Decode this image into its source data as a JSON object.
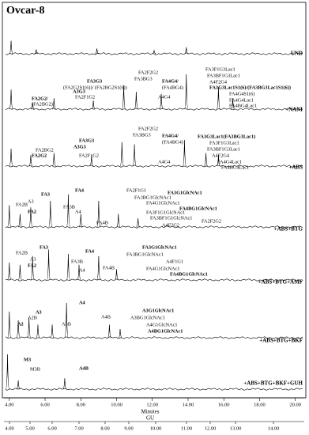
{
  "chart_data": {
    "type": "line",
    "title": "Ovcar-8",
    "xlabel": "Minutes",
    "x2label": "GU",
    "xlim": [
      3.7,
      20.5
    ],
    "xticks": [
      {
        "value": 4,
        "label": "4.00"
      },
      {
        "value": 6,
        "label": "6.00"
      },
      {
        "value": 8,
        "label": "8.00"
      },
      {
        "value": 10,
        "label": "10.00"
      },
      {
        "value": 12,
        "label": "12.00"
      },
      {
        "value": 14,
        "label": "14.00"
      },
      {
        "value": 16,
        "label": "16.00"
      },
      {
        "value": 18,
        "label": "18.00"
      },
      {
        "value": 20,
        "label": "20.00"
      }
    ],
    "x2ticks": [
      {
        "value": 4,
        "label": "4.00"
      },
      {
        "value": 5,
        "label": "5.00"
      },
      {
        "value": 6,
        "label": "6.00"
      },
      {
        "value": 7,
        "label": "7.00"
      },
      {
        "value": 8,
        "label": "8.00"
      },
      {
        "value": 9,
        "label": "9.00"
      },
      {
        "value": 10,
        "label": "10.00"
      },
      {
        "value": 11,
        "label": "11.00"
      },
      {
        "value": 12,
        "label": "12.00"
      },
      {
        "value": 13,
        "label": "13.00"
      },
      {
        "value": 14,
        "label": "14.00"
      }
    ],
    "color": "#000000",
    "panels": [
      {
        "label": "UND",
        "peaks": {
          "x": [
            4.1,
            5.5,
            8.9,
            12.1,
            13.9
          ],
          "values": [
            30,
            10,
            12,
            8,
            15
          ]
        },
        "annotations": []
      },
      {
        "label": "+NANI",
        "peaks": {
          "x": [
            4.1,
            5.3,
            6.5,
            8.7,
            10.4,
            11.1,
            12.5,
            13.9,
            15.7,
            16.5
          ],
          "values": [
            45,
            15,
            25,
            20,
            55,
            40,
            35,
            80,
            50,
            25
          ]
        },
        "annotations": [
          "FA2F2G2",
          "FA3BG3",
          "FA3G3",
          "(FA2G2S1(6))/ (FA2BG2S1(6))",
          "A3G3",
          "FA2G2/",
          "(FA2BG2)",
          "FA2F1G2",
          "FA4G4/",
          "(FA4BG4)",
          "A4G4",
          "FA3F1G3Lac1",
          "FA3BF1G3Lac1",
          "A4F2G4",
          "FA3G3Lac1S1(6)/(FA3BG3Lac1S1(6))",
          "FA4G4S1(6)",
          "FA4G4Lac1",
          "FA4BG4Lac1"
        ]
      },
      {
        "label": "+ABS",
        "peaks": {
          "x": [
            4.1,
            5.2,
            6.5,
            8.6,
            10.3,
            11.0,
            13.8,
            15.0,
            15.7
          ],
          "values": [
            40,
            25,
            30,
            25,
            55,
            50,
            60,
            30,
            25
          ]
        },
        "annotations": [
          "FA2F2G2",
          "FA3BG3",
          "FA3G3",
          "FA4G4/",
          "(FA4BG4)",
          "A3G3",
          "FA2BG2",
          "FA2G2",
          "FA2F1G2",
          "A4G4",
          "FA3G3Lac1(FA3BG3Lac1)",
          "FA3F1G3Lac1",
          "FA3BF1G3Lac1",
          "A4F2G4",
          "FA4G4Lac1",
          "FA4BG4Lac1"
        ]
      },
      {
        "label": "+ABS+BTG",
        "peaks": {
          "x": [
            4.0,
            4.6,
            5.2,
            6.3,
            7.3,
            8.0,
            9.0,
            10.1,
            11.2
          ],
          "values": [
            50,
            30,
            45,
            60,
            75,
            30,
            60,
            30,
            20
          ]
        },
        "annotations": [
          "FA4",
          "FA3",
          "FA2B",
          "A3",
          "FA2",
          "A4",
          "FA3B",
          "FA2F1G1",
          "FA3G1GlcNAc1",
          "FA3BG1GlcNAc1",
          "FA4G1GlcNAc1",
          "FA4BG1GlcNAc1",
          "FA4B",
          "FA3F1G1GlcNAc1",
          "FA3BF1G1GlcNAc1",
          "FA2F2G2",
          "A4F2G2"
        ]
      },
      {
        "label": "+ABS+BTG+AMF",
        "peaks": {
          "x": [
            4.0,
            4.6,
            5.3,
            6.2,
            7.3,
            7.9,
            9.0,
            10.0
          ],
          "values": [
            40,
            35,
            55,
            70,
            60,
            35,
            55,
            25
          ]
        },
        "annotations": [
          "FA3",
          "FA4",
          "FA2B",
          "A3",
          "FA2",
          "FA3B",
          "A4",
          "FA3G1GlcNAc1",
          "FA3BG1GlcNAc1",
          "A4F1G1",
          "FA4B",
          "FA4G1GlcNAc1",
          "FA4BG1GlcNAc1"
        ]
      },
      {
        "label": "+ABS+BTG+BKF",
        "peaks": {
          "x": [
            4.0,
            4.5,
            5.1,
            5.6,
            6.4,
            7.2,
            9.6,
            10.2
          ],
          "values": [
            60,
            40,
            45,
            30,
            30,
            80,
            30,
            20
          ]
        },
        "annotations": [
          "A4",
          "A3",
          "A2B",
          "A3B",
          "A4B",
          "A2",
          "A3G1GlcNAc1",
          "A3BG1GlcNAc1",
          "A4G1GlcNAc1",
          "A4BG1GlcNAc1"
        ]
      },
      {
        "label": "+ABS+BTG+BKF+GUH",
        "peaks": {
          "x": [
            3.9,
            4.5,
            7.1
          ],
          "values": [
            80,
            20,
            25
          ]
        },
        "annotations": [
          "M3",
          "M3B",
          "A4B"
        ]
      }
    ]
  }
}
